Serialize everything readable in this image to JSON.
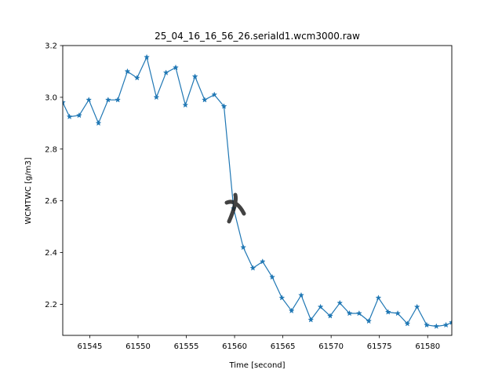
{
  "chart_data": {
    "type": "line",
    "title": "25_04_16_16_56_26.seriald1.wcm3000.raw",
    "xlabel": "Time [second]",
    "ylabel": "WCMTWC [g/m3]",
    "xlim": [
      61542.2,
      61582.5
    ],
    "ylim": [
      2.08,
      3.2
    ],
    "x_ticks": [
      61545,
      61550,
      61555,
      61560,
      61565,
      61570,
      61575,
      61580
    ],
    "x_tick_labels": [
      "61545",
      "61550",
      "61555",
      "61560",
      "61565",
      "61570",
      "61575",
      "61580"
    ],
    "y_ticks": [
      2.2,
      2.4,
      2.6,
      2.8,
      3.0,
      3.2
    ],
    "y_tick_labels": [
      "2.2",
      "2.4",
      "2.6",
      "2.8",
      "3.0",
      "3.2"
    ],
    "grid": false,
    "line_color": "#1f77b4",
    "series": [
      {
        "marker": "star",
        "x": [
          61542.2,
          61542.9,
          61543.9,
          61544.9,
          61545.9,
          61546.9,
          61547.9,
          61548.9,
          61549.9,
          61550.9,
          61551.9,
          61552.9,
          61553.9,
          61554.9,
          61555.9,
          61556.9,
          61557.9,
          61558.9,
          61559.9,
          61560.9,
          61561.9,
          61562.9,
          61563.9,
          61564.9,
          61565.9,
          61566.9,
          61567.9,
          61568.9,
          61569.9,
          61570.9,
          61571.9,
          61572.9,
          61573.9,
          61574.9,
          61575.9,
          61576.9,
          61577.9,
          61578.9,
          61579.9,
          61580.9,
          61581.9,
          61582.5
        ],
        "y": [
          2.98,
          2.925,
          2.93,
          2.99,
          2.9,
          2.99,
          2.99,
          3.1,
          3.075,
          3.155,
          3.0,
          3.095,
          3.115,
          2.97,
          3.08,
          2.99,
          3.01,
          2.965,
          2.57,
          2.42,
          2.34,
          2.365,
          2.305,
          2.225,
          2.175,
          2.235,
          2.14,
          2.19,
          2.155,
          2.205,
          2.165,
          2.165,
          2.135,
          2.225,
          2.17,
          2.165,
          2.125,
          2.19,
          2.12,
          2.115,
          2.12,
          2.13
        ]
      }
    ]
  }
}
